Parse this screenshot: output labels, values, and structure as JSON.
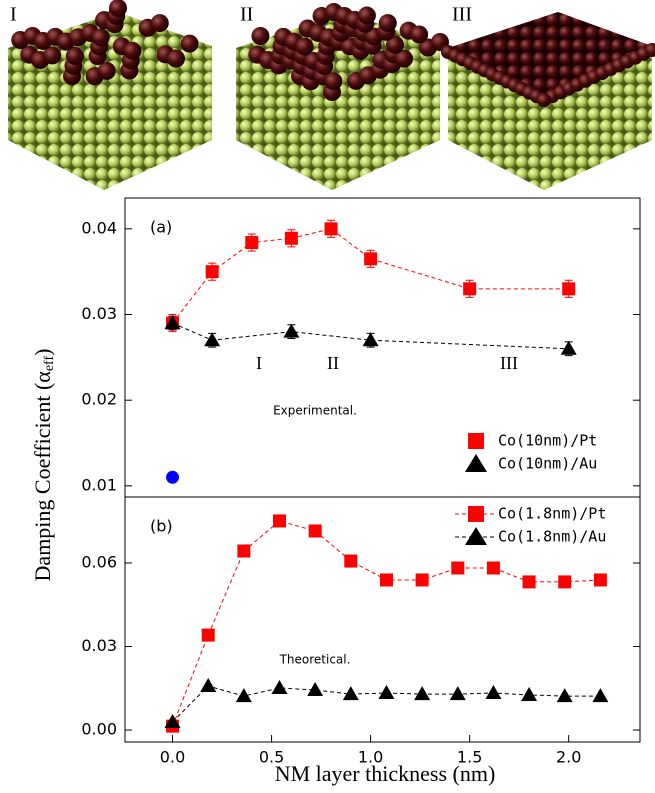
{
  "images": {
    "labels": [
      "I",
      "II",
      "III"
    ]
  },
  "chart_data": [
    {
      "type": "line",
      "panel_label": "(a)",
      "ylabel": "Damping Coefficient (α",
      "ylabel_sub": "eff",
      "ylabel_end": ")",
      "xlim": [
        -0.24,
        2.36
      ],
      "ylim": [
        0.0087,
        0.0436
      ],
      "yticks": [
        0.01,
        0.02,
        0.03,
        0.04
      ],
      "annotations": [
        "I",
        "II",
        "III",
        "Experimental."
      ],
      "legend": "lower right",
      "series": [
        {
          "name": "Co(10nm)/Pt",
          "color": "#ff0000",
          "marker": "square",
          "x": [
            0,
            0.2,
            0.4,
            0.6,
            0.8,
            1.0,
            1.5,
            2.0
          ],
          "values": [
            0.029,
            0.035,
            0.0384,
            0.0389,
            0.04,
            0.0365,
            0.033,
            0.033
          ],
          "errors": [
            0.001,
            0.001,
            0.001,
            0.001,
            0.001,
            0.001,
            0.001,
            0.001
          ]
        },
        {
          "name": "Co(10nm)/Au",
          "color": "#000000",
          "marker": "triangle",
          "x": [
            0,
            0.2,
            0.6,
            1.0,
            2.0
          ],
          "values": [
            0.029,
            0.027,
            0.028,
            0.027,
            0.026
          ],
          "errors": [
            0.0008,
            0.0008,
            0.0008,
            0.0008,
            0.0008
          ]
        }
      ],
      "points": [
        {
          "x": 0,
          "y": 0.011,
          "color": "#0000ff"
        }
      ]
    },
    {
      "type": "line",
      "panel_label": "(b)",
      "xlabel": "NM layer thickness (nm)",
      "xlim": [
        -0.24,
        2.36
      ],
      "ylim": [
        -0.0043,
        0.0837
      ],
      "xticks": [
        {
          "value": 0,
          "label": "0.0"
        },
        0.5,
        {
          "value": 1,
          "label": "1.0"
        },
        1.5,
        {
          "value": 2,
          "label": "2.0"
        }
      ],
      "yticks": [
        {
          "value": 0,
          "label": "0.00"
        },
        0.03,
        0.06
      ],
      "annotations": [
        "Theoretical."
      ],
      "legend": "upper right",
      "series": [
        {
          "name": "Co(1.8nm)/Pt",
          "color": "#ff0000",
          "marker": "square",
          "x": [
            0,
            0.18,
            0.36,
            0.54,
            0.72,
            0.9,
            1.08,
            1.26,
            1.44,
            1.62,
            1.8,
            1.98,
            2.16
          ],
          "values": [
            0.0014,
            0.0341,
            0.0643,
            0.0751,
            0.0715,
            0.0607,
            0.0539,
            0.0539,
            0.0582,
            0.0582,
            0.0532,
            0.0532,
            0.0539
          ]
        },
        {
          "name": "Co(1.8nm)/Au",
          "color": "#000000",
          "marker": "triangle",
          "x": [
            0,
            0.18,
            0.36,
            0.54,
            0.72,
            0.9,
            1.08,
            1.26,
            1.44,
            1.62,
            1.8,
            1.98,
            2.16
          ],
          "values": [
            0.0029,
            0.0158,
            0.0122,
            0.0151,
            0.0144,
            0.0129,
            0.0133,
            0.0129,
            0.0129,
            0.0133,
            0.0126,
            0.0122,
            0.0122
          ]
        }
      ]
    }
  ]
}
